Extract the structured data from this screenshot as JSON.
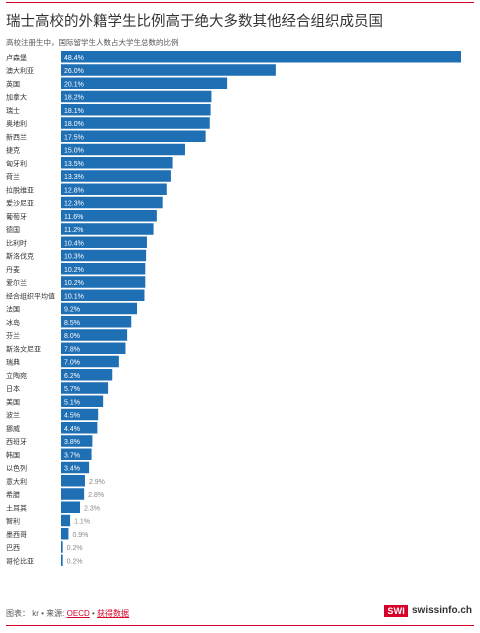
{
  "header": {
    "title": "瑞士高校的外籍学生比例高于绝大多数其他经合组织成员国",
    "subtitle": "高校注册生中，国际留学生人数占大学生总数的比例"
  },
  "footer": {
    "chart_label": "图表：",
    "author": "kr",
    "source_label": "来源:",
    "source_link": "OECD",
    "download_link": "获得数据"
  },
  "brand": {
    "box": "SWI",
    "text": "swissinfo.ch"
  },
  "colors": {
    "bar": "#1f6fb4",
    "accent": "#d6002a"
  },
  "chart_data": {
    "type": "bar",
    "orientation": "horizontal",
    "title": "瑞士高校的外籍学生比例高于绝大多数其他经合组织成员国",
    "subtitle": "高校注册生中，国际留学生人数占大学生总数的比例",
    "xlabel": "",
    "ylabel": "",
    "grid": false,
    "xlim": [
      0,
      48.4
    ],
    "categories": [
      "卢森堡",
      "澳大利亚",
      "英国",
      "加拿大",
      "瑞士",
      "奥地利",
      "新西兰",
      "捷克",
      "匈牙利",
      "荷兰",
      "拉脱维亚",
      "爱沙尼亚",
      "葡萄牙",
      "德国",
      "比利时",
      "斯洛伐克",
      "丹麦",
      "爱尔兰",
      "经合组织平均值",
      "法国",
      "冰岛",
      "芬兰",
      "斯洛文尼亚",
      "瑞典",
      "立陶宛",
      "日本",
      "美国",
      "波兰",
      "挪威",
      "西班牙",
      "韩国",
      "以色列",
      "意大利",
      "希腊",
      "土耳其",
      "智利",
      "墨西哥",
      "巴西",
      "哥伦比亚"
    ],
    "values": [
      48.4,
      26.0,
      20.1,
      18.2,
      18.1,
      18.0,
      17.5,
      15.0,
      13.5,
      13.3,
      12.8,
      12.3,
      11.6,
      11.2,
      10.4,
      10.3,
      10.2,
      10.2,
      10.1,
      9.2,
      8.5,
      8.0,
      7.8,
      7.0,
      6.2,
      5.7,
      5.1,
      4.5,
      4.4,
      3.8,
      3.7,
      3.4,
      2.9,
      2.8,
      2.3,
      1.1,
      0.9,
      0.2,
      0.2
    ],
    "value_labels": [
      "48.4%",
      "26.0%",
      "20.1%",
      "18.2%",
      "18.1%",
      "18.0%",
      "17.5%",
      "15.0%",
      "13.5%",
      "13.3%",
      "12.8%",
      "12.3%",
      "11.6%",
      "11.2%",
      "10.4%",
      "10.3%",
      "10.2%",
      "10.2%",
      "10.1%",
      "9.2%",
      "8.5%",
      "8.0%",
      "7.8%",
      "7.0%",
      "6.2%",
      "5.7%",
      "5.1%",
      "4.5%",
      "4.4%",
      "3.8%",
      "3.7%",
      "3.4%",
      "2.9%",
      "2.8%",
      "2.3%",
      "1.1%",
      "0.9%",
      "0.2%",
      "0.2%"
    ]
  }
}
